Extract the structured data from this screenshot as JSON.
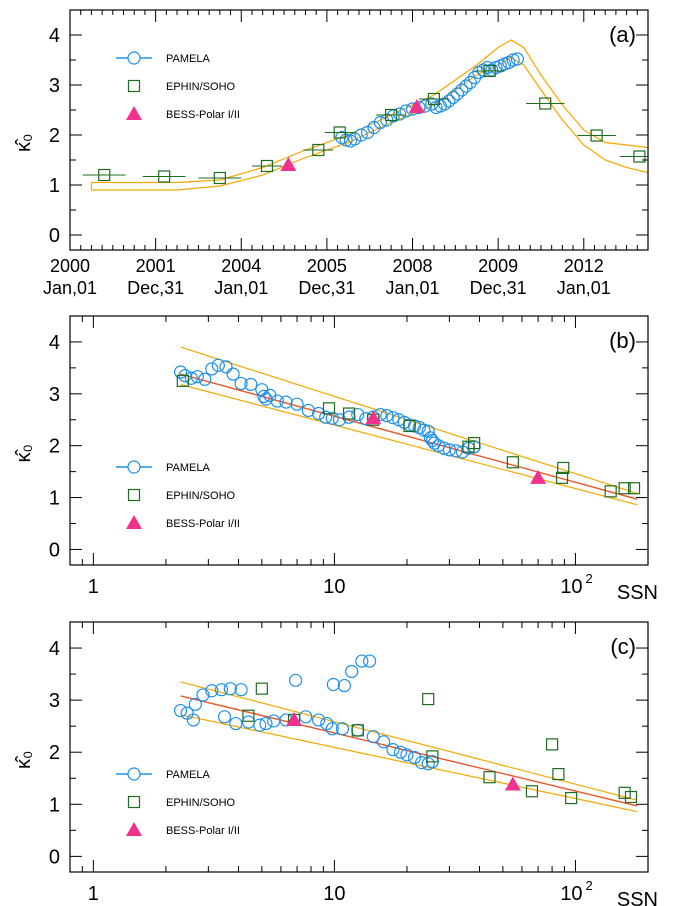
{
  "figure": {
    "colors": {
      "pamela": "#1e90e6",
      "ephin": "#1f6b1f",
      "bess": "#f0328c",
      "band": "#f5a800",
      "fit": "#e8562a",
      "frame": "#000000"
    },
    "legend_labels": [
      "PAMELA",
      "EPHIN/SOHO",
      "BESS-Polar I/II"
    ]
  },
  "chart_data": [
    {
      "type": "scatter",
      "panel_label": "(a)",
      "ylabel": "κ̂₀",
      "xlabel": "",
      "x_axis": "time",
      "xlim": [
        2000.0,
        2013.5
      ],
      "ylim": [
        -0.3,
        4.5
      ],
      "yticks": [
        0,
        1,
        2,
        3,
        4
      ],
      "xtick_labels": [
        {
          "x": 2000,
          "line1": "2000",
          "line2": "Jan,01"
        },
        {
          "x": 2002,
          "line1": "2001",
          "line2": "Dec,31"
        },
        {
          "x": 2004,
          "line1": "2004",
          "line2": "Jan,01"
        },
        {
          "x": 2006,
          "line1": "2005",
          "line2": "Dec,31"
        },
        {
          "x": 2008,
          "line1": "2008",
          "line2": "Jan,01"
        },
        {
          "x": 2010,
          "line1": "2009",
          "line2": "Dec,31"
        },
        {
          "x": 2012,
          "line1": "2012",
          "line2": "Jan,01"
        }
      ],
      "legend": {
        "position": "top-left"
      },
      "series": [
        {
          "name": "PAMELA",
          "marker": "circle",
          "points": [
            [
              2006.35,
              1.95
            ],
            [
              2006.45,
              1.9
            ],
            [
              2006.55,
              1.88
            ],
            [
              2006.65,
              1.92
            ],
            [
              2006.8,
              2.0
            ],
            [
              2006.95,
              2.05
            ],
            [
              2007.1,
              2.15
            ],
            [
              2007.25,
              2.25
            ],
            [
              2007.4,
              2.3
            ],
            [
              2007.55,
              2.38
            ],
            [
              2007.7,
              2.42
            ],
            [
              2007.85,
              2.48
            ],
            [
              2008.0,
              2.52
            ],
            [
              2008.15,
              2.55
            ],
            [
              2008.3,
              2.58
            ],
            [
              2008.45,
              2.62
            ],
            [
              2008.55,
              2.55
            ],
            [
              2008.65,
              2.58
            ],
            [
              2008.75,
              2.62
            ],
            [
              2008.85,
              2.68
            ],
            [
              2008.95,
              2.75
            ],
            [
              2009.05,
              2.82
            ],
            [
              2009.15,
              2.9
            ],
            [
              2009.25,
              2.98
            ],
            [
              2009.35,
              3.05
            ],
            [
              2009.45,
              3.15
            ],
            [
              2009.55,
              3.25
            ],
            [
              2009.65,
              3.3
            ],
            [
              2009.75,
              3.35
            ],
            [
              2009.85,
              3.3
            ],
            [
              2009.95,
              3.35
            ],
            [
              2010.05,
              3.38
            ],
            [
              2010.15,
              3.42
            ],
            [
              2010.25,
              3.45
            ],
            [
              2010.35,
              3.5
            ],
            [
              2010.45,
              3.52
            ]
          ]
        },
        {
          "name": "EPHIN/SOHO",
          "marker": "square",
          "points": [
            [
              2000.8,
              1.2
            ],
            [
              2002.2,
              1.17
            ],
            [
              2003.5,
              1.14
            ],
            [
              2004.6,
              1.38
            ],
            [
              2005.8,
              1.7
            ],
            [
              2006.3,
              2.05
            ],
            [
              2007.5,
              2.4
            ],
            [
              2008.5,
              2.72
            ],
            [
              2009.8,
              3.28
            ],
            [
              2011.1,
              2.63
            ],
            [
              2012.3,
              1.99
            ],
            [
              2013.3,
              1.57
            ]
          ],
          "x_err": [
            0.5,
            0.5,
            0.5,
            0.35,
            0.35,
            0.35,
            0.35,
            0.35,
            0.35,
            0.45,
            0.45,
            0.45
          ]
        },
        {
          "name": "BESS-Polar I/II",
          "marker": "triangle",
          "points": [
            [
              2005.1,
              1.4
            ],
            [
              2008.1,
              2.56
            ]
          ]
        }
      ],
      "band": {
        "x": [
          2000.5,
          2001.5,
          2002.5,
          2003.5,
          2004.5,
          2005.5,
          2006.5,
          2007.5,
          2008.5,
          2009.0,
          2009.5,
          2010.0,
          2010.3,
          2010.6,
          2011.0,
          2011.5,
          2012.0,
          2012.5,
          2013.0,
          2013.5
        ],
        "upper": [
          1.05,
          1.05,
          1.05,
          1.1,
          1.35,
          1.7,
          2.0,
          2.4,
          2.8,
          3.1,
          3.4,
          3.75,
          3.9,
          3.75,
          3.2,
          2.6,
          2.1,
          1.85,
          1.8,
          1.75
        ],
        "lower": [
          0.9,
          0.9,
          0.9,
          0.98,
          1.2,
          1.55,
          1.85,
          2.25,
          2.6,
          2.9,
          3.2,
          3.4,
          3.55,
          3.4,
          2.9,
          2.3,
          1.8,
          1.5,
          1.35,
          1.25
        ]
      }
    },
    {
      "type": "scatter",
      "panel_label": "(b)",
      "ylabel": "κ̂₀",
      "xlabel": "SSN",
      "x_axis": "log",
      "xlim": [
        0.8,
        200
      ],
      "ylim": [
        -0.3,
        4.5
      ],
      "yticks": [
        0,
        1,
        2,
        3,
        4
      ],
      "xtick_labels": [
        {
          "x": 1,
          "label": "1"
        },
        {
          "x": 10,
          "label": "10"
        },
        {
          "x": 100,
          "label": "10",
          "sup": "2"
        }
      ],
      "legend": {
        "position": "bottom-left"
      },
      "series": [
        {
          "name": "PAMELA",
          "marker": "circle",
          "points": [
            [
              2.3,
              3.42
            ],
            [
              2.4,
              3.35
            ],
            [
              2.55,
              3.3
            ],
            [
              2.7,
              3.33
            ],
            [
              2.9,
              3.28
            ],
            [
              3.1,
              3.48
            ],
            [
              3.3,
              3.55
            ],
            [
              3.55,
              3.52
            ],
            [
              3.8,
              3.38
            ],
            [
              4.1,
              3.2
            ],
            [
              4.5,
              3.18
            ],
            [
              5.0,
              3.08
            ],
            [
              5.1,
              2.95
            ],
            [
              5.2,
              2.9
            ],
            [
              5.4,
              2.97
            ],
            [
              5.8,
              2.86
            ],
            [
              6.3,
              2.84
            ],
            [
              7.0,
              2.8
            ],
            [
              7.8,
              2.68
            ],
            [
              8.6,
              2.62
            ],
            [
              9.2,
              2.55
            ],
            [
              9.8,
              2.53
            ],
            [
              10.5,
              2.5
            ],
            [
              11.5,
              2.55
            ],
            [
              12.5,
              2.6
            ],
            [
              13.5,
              2.52
            ],
            [
              14.5,
              2.55
            ],
            [
              15.5,
              2.6
            ],
            [
              16.5,
              2.58
            ],
            [
              17.5,
              2.54
            ],
            [
              18.5,
              2.5
            ],
            [
              19.5,
              2.45
            ],
            [
              20.5,
              2.4
            ],
            [
              21.5,
              2.38
            ],
            [
              22.5,
              2.35
            ],
            [
              23.5,
              2.3
            ],
            [
              24.5,
              2.28
            ],
            [
              25.0,
              2.15
            ],
            [
              25.5,
              2.1
            ],
            [
              26.0,
              2.05
            ],
            [
              27.0,
              2.0
            ],
            [
              28.5,
              1.95
            ],
            [
              30.0,
              1.92
            ],
            [
              32.0,
              1.9
            ],
            [
              34.0,
              1.88
            ],
            [
              36.0,
              1.95
            ],
            [
              38.0,
              1.98
            ]
          ]
        },
        {
          "name": "EPHIN/SOHO",
          "marker": "square",
          "points": [
            [
              2.35,
              3.25
            ],
            [
              9.5,
              2.72
            ],
            [
              11.5,
              2.62
            ],
            [
              14.5,
              2.5
            ],
            [
              20.5,
              2.38
            ],
            [
              36.0,
              1.98
            ],
            [
              38.0,
              2.05
            ],
            [
              55.0,
              1.68
            ],
            [
              88.0,
              1.38
            ],
            [
              89.0,
              1.57
            ],
            [
              140.0,
              1.12
            ],
            [
              160.0,
              1.18
            ],
            [
              175.0,
              1.18
            ]
          ]
        },
        {
          "name": "BESS-Polar I/II",
          "marker": "triangle",
          "points": [
            [
              14.5,
              2.53
            ],
            [
              70.0,
              1.38
            ]
          ]
        }
      ],
      "fit": {
        "x": [
          2.3,
          180.0
        ],
        "y": [
          3.38,
          0.97
        ]
      },
      "band": {
        "x": [
          2.3,
          180.0
        ],
        "upper": [
          3.9,
          1.08
        ],
        "lower": [
          3.18,
          0.86
        ]
      }
    },
    {
      "type": "scatter",
      "panel_label": "(c)",
      "ylabel": "κ̂₀",
      "xlabel": "SSN",
      "x_axis": "log",
      "xlim": [
        0.8,
        200
      ],
      "ylim": [
        -0.3,
        4.5
      ],
      "yticks": [
        0,
        1,
        2,
        3,
        4
      ],
      "xtick_labels": [
        {
          "x": 1,
          "label": "1"
        },
        {
          "x": 10,
          "label": "10"
        },
        {
          "x": 100,
          "label": "10",
          "sup": "2"
        }
      ],
      "legend": {
        "position": "bottom-left"
      },
      "series": [
        {
          "name": "PAMELA",
          "marker": "circle",
          "points": [
            [
              2.3,
              2.8
            ],
            [
              2.45,
              2.75
            ],
            [
              2.6,
              2.62
            ],
            [
              2.65,
              2.92
            ],
            [
              2.85,
              3.1
            ],
            [
              3.1,
              3.18
            ],
            [
              3.4,
              3.2
            ],
            [
              3.7,
              3.22
            ],
            [
              4.1,
              3.2
            ],
            [
              3.5,
              2.68
            ],
            [
              3.9,
              2.55
            ],
            [
              4.4,
              2.58
            ],
            [
              4.9,
              2.52
            ],
            [
              5.2,
              2.55
            ],
            [
              5.6,
              2.6
            ],
            [
              6.3,
              2.62
            ],
            [
              6.9,
              3.38
            ],
            [
              7.6,
              2.68
            ],
            [
              8.6,
              2.62
            ],
            [
              9.3,
              2.55
            ],
            [
              9.8,
              2.45
            ],
            [
              9.9,
              3.3
            ],
            [
              10.8,
              2.45
            ],
            [
              11.0,
              3.28
            ],
            [
              11.8,
              3.55
            ],
            [
              12.5,
              2.42
            ],
            [
              13.0,
              3.75
            ],
            [
              14.0,
              3.75
            ],
            [
              14.5,
              2.3
            ],
            [
              16.0,
              2.2
            ],
            [
              17.5,
              2.05
            ],
            [
              18.8,
              2.0
            ],
            [
              20.0,
              1.95
            ],
            [
              21.5,
              1.9
            ],
            [
              23.0,
              1.8
            ],
            [
              24.5,
              1.78
            ],
            [
              25.5,
              1.82
            ]
          ]
        },
        {
          "name": "EPHIN/SOHO",
          "marker": "square",
          "points": [
            [
              4.4,
              2.7
            ],
            [
              5.0,
              3.22
            ],
            [
              6.8,
              2.62
            ],
            [
              12.5,
              2.42
            ],
            [
              24.5,
              3.02
            ],
            [
              25.5,
              1.92
            ],
            [
              44.0,
              1.52
            ],
            [
              66.0,
              1.25
            ],
            [
              80.0,
              2.15
            ],
            [
              85.0,
              1.58
            ],
            [
              96.0,
              1.12
            ],
            [
              160.0,
              1.22
            ],
            [
              170.0,
              1.14
            ]
          ]
        },
        {
          "name": "BESS-Polar I/II",
          "marker": "triangle",
          "points": [
            [
              6.8,
              2.62
            ],
            [
              55.0,
              1.38
            ]
          ]
        }
      ],
      "fit": {
        "x": [
          2.3,
          180.0
        ],
        "y": [
          3.08,
          0.97
        ]
      },
      "band": {
        "x": [
          2.3,
          180.0
        ],
        "upper": [
          3.35,
          1.08
        ],
        "lower": [
          2.72,
          0.86
        ]
      }
    }
  ]
}
